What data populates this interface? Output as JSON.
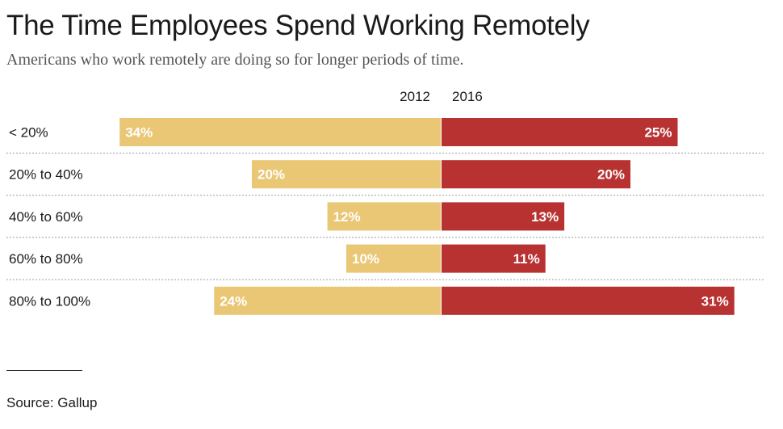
{
  "chart_data": {
    "type": "bar",
    "title": "The Time Employees Spend Working Remotely",
    "subtitle": "Americans who work remotely are doing so for longer periods of time.",
    "categories": [
      "< 20%",
      "20% to 40%",
      "40% to 60%",
      "60% to 80%",
      "80% to 100%"
    ],
    "series": [
      {
        "name": "2012",
        "values": [
          34,
          20,
          12,
          10,
          24
        ],
        "labels": [
          "34%",
          "20%",
          "12%",
          "10%",
          "24%"
        ],
        "color": "#e9c775"
      },
      {
        "name": "2016",
        "values": [
          25,
          20,
          13,
          11,
          31
        ],
        "labels": [
          "25%",
          "20%",
          "13%",
          "11%",
          "31%"
        ],
        "color": "#b83232"
      }
    ],
    "orientation": "horizontal-diverging",
    "xlim": [
      0,
      34
    ],
    "grid": false,
    "row_separators": "dotted"
  },
  "source": "Source: Gallup"
}
